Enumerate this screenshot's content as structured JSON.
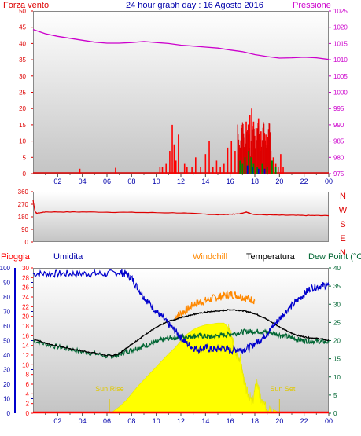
{
  "header": {
    "left_label": "Forza vento",
    "title": "24 hour graph day : 16 Agosto 2016",
    "right_label": "Pressione"
  },
  "panel3_labels": {
    "rain": "Pioggia",
    "humidity": "Umidita",
    "windchill": "Windchill",
    "temperature": "Temperatura",
    "dewpoint": "Dew Point (°C"
  },
  "colors": {
    "wind": "#dd0000",
    "wind_gust": "#ff0000",
    "wind_green": "#008800",
    "wind_blue": "#0000cc",
    "pressure": "#cc00cc",
    "direction": "#dd0000",
    "humidity": "#0000cc",
    "temperature": "#000000",
    "windchill": "#ff8800",
    "dewpoint": "#006633",
    "solar": "#ffff00",
    "rain": "#ff0000",
    "background_top": "#ffffff",
    "background_bottom": "#bfbfbf"
  },
  "chart_data": [
    {
      "type": "line",
      "name": "wind-pressure",
      "x_ticks": [
        "02",
        "04",
        "06",
        "08",
        "10",
        "12",
        "14",
        "16",
        "18",
        "20",
        "22",
        "00"
      ],
      "left_axis": {
        "ticks": [
          0,
          5,
          10,
          15,
          20,
          25,
          30,
          35,
          40,
          45,
          50
        ],
        "ylim": [
          0,
          50
        ]
      },
      "right_axis": {
        "ticks": [
          975,
          980,
          985,
          990,
          995,
          1000,
          1005,
          1010,
          1015,
          1020,
          1025
        ],
        "ylim": [
          975,
          1025
        ]
      },
      "pressure": {
        "x": [
          0,
          1,
          2,
          3,
          4,
          5,
          6,
          7,
          8,
          9,
          10,
          11,
          12,
          13,
          14,
          15,
          16,
          17,
          18,
          19,
          20,
          21,
          22,
          23,
          24
        ],
        "y": [
          1019.3,
          1018.0,
          1017.2,
          1016.6,
          1016.0,
          1015.4,
          1015.1,
          1015.1,
          1015.3,
          1015.6,
          1015.3,
          1015.0,
          1014.5,
          1014.2,
          1013.9,
          1013.6,
          1013.0,
          1012.5,
          1011.6,
          1011.0,
          1010.5,
          1010.6,
          1010.8,
          1010.6,
          1010.1
        ]
      },
      "wind_speed_spikes": [
        {
          "x": 3.8,
          "v": 1.5
        },
        {
          "x": 6.7,
          "v": 1.8
        },
        {
          "x": 10.3,
          "v": 2
        },
        {
          "x": 10.5,
          "v": 2
        },
        {
          "x": 10.8,
          "v": 3
        },
        {
          "x": 11.1,
          "v": 7
        },
        {
          "x": 11.3,
          "v": 15
        },
        {
          "x": 11.45,
          "v": 9
        },
        {
          "x": 11.6,
          "v": 4
        },
        {
          "x": 11.8,
          "v": 12
        },
        {
          "x": 12.3,
          "v": 3
        },
        {
          "x": 12.5,
          "v": 2
        },
        {
          "x": 12.9,
          "v": 2
        },
        {
          "x": 13.2,
          "v": 5
        },
        {
          "x": 13.6,
          "v": 2
        },
        {
          "x": 14.0,
          "v": 6
        },
        {
          "x": 14.3,
          "v": 10
        },
        {
          "x": 14.6,
          "v": 2
        },
        {
          "x": 14.9,
          "v": 4
        },
        {
          "x": 15.2,
          "v": 2
        },
        {
          "x": 15.5,
          "v": 3
        },
        {
          "x": 15.8,
          "v": 8
        },
        {
          "x": 16.1,
          "v": 10
        },
        {
          "x": 16.4,
          "v": 7
        },
        {
          "x": 16.7,
          "v": 6
        },
        {
          "x": 16.9,
          "v": 15
        },
        {
          "x": 17.1,
          "v": 11
        },
        {
          "x": 17.3,
          "v": 16
        },
        {
          "x": 17.5,
          "v": 12
        },
        {
          "x": 17.6,
          "v": 18
        },
        {
          "x": 17.75,
          "v": 20
        },
        {
          "x": 17.9,
          "v": 16
        },
        {
          "x": 18.1,
          "v": 14
        },
        {
          "x": 18.3,
          "v": 17
        },
        {
          "x": 18.5,
          "v": 13
        },
        {
          "x": 18.7,
          "v": 10
        },
        {
          "x": 18.9,
          "v": 12
        },
        {
          "x": 19.1,
          "v": 9
        },
        {
          "x": 19.3,
          "v": 7
        },
        {
          "x": 19.5,
          "v": 5
        },
        {
          "x": 19.7,
          "v": 3
        },
        {
          "x": 19.9,
          "v": 2
        },
        {
          "x": 20.1,
          "v": 6
        },
        {
          "x": 20.3,
          "v": 2
        }
      ],
      "wind_avg_green": [
        {
          "x": 16.8,
          "v": 4
        },
        {
          "x": 17.0,
          "v": 3
        },
        {
          "x": 17.2,
          "v": 5
        },
        {
          "x": 17.5,
          "v": 7
        },
        {
          "x": 17.7,
          "v": 5
        },
        {
          "x": 17.9,
          "v": 3
        },
        {
          "x": 18.2,
          "v": 2
        },
        {
          "x": 18.6,
          "v": 3
        },
        {
          "x": 19.0,
          "v": 2
        },
        {
          "x": 19.4,
          "v": 4
        },
        {
          "x": 19.7,
          "v": 2
        }
      ],
      "wind_avg_blue": [
        {
          "x": 17.4,
          "v": 2.5
        },
        {
          "x": 17.8,
          "v": 2
        },
        {
          "x": 18.3,
          "v": 1.5
        },
        {
          "x": 18.8,
          "v": 1.5
        }
      ]
    },
    {
      "type": "line",
      "name": "wind-direction",
      "x_ticks": [],
      "left_axis": {
        "ticks": [
          0,
          90,
          180,
          270,
          360
        ],
        "ylim": [
          0,
          360
        ]
      },
      "right_labels": [
        "N",
        "W",
        "S",
        "E",
        "N"
      ],
      "direction": {
        "x": [
          0,
          0.15,
          0.3,
          1,
          4,
          8,
          12,
          15,
          16,
          16.5,
          17,
          17.3,
          17.6,
          18,
          20,
          22,
          24
        ],
        "y": [
          300,
          220,
          205,
          215,
          215,
          212,
          208,
          195,
          198,
          200,
          207,
          215,
          205,
          196,
          192,
          190,
          188
        ]
      }
    },
    {
      "type": "line",
      "name": "humidity-temperature",
      "x_ticks": [
        "02",
        "04",
        "06",
        "08",
        "10",
        "12",
        "14",
        "16",
        "18",
        "20",
        "22",
        "00"
      ],
      "humidity_axis": {
        "ticks": [
          0,
          10,
          20,
          30,
          40,
          50,
          60,
          70,
          80,
          90,
          100
        ],
        "ylim": [
          0,
          100
        ]
      },
      "rain_axis": {
        "ticks": [
          0,
          2,
          4,
          6,
          8,
          10,
          12,
          14,
          16,
          18,
          20,
          22,
          24,
          26,
          28,
          30
        ],
        "ylim": [
          0,
          30
        ]
      },
      "temp_axis": {
        "ticks": [
          0,
          5,
          10,
          15,
          20,
          25,
          30,
          35,
          40
        ],
        "ylim": [
          0,
          40
        ]
      },
      "sun_rise_label": "Sun Rise",
      "sun_set_label": "Sun Set",
      "sun_rise_hour": 6.2,
      "sun_set_hour": 20.0,
      "humidity": {
        "x": [
          0,
          1,
          2,
          3,
          4,
          5,
          6,
          7,
          7.5,
          8,
          8.5,
          9,
          9.5,
          10,
          10.5,
          11,
          11.5,
          12,
          12.5,
          13,
          13.5,
          14,
          14.5,
          15,
          15.5,
          16,
          16.5,
          17,
          17.5,
          18,
          18.5,
          19,
          19.5,
          20,
          20.5,
          21,
          21.5,
          22,
          22.5,
          23,
          23.5,
          24
        ],
        "y": [
          96,
          96,
          96,
          96,
          96,
          96,
          96,
          97,
          96,
          93,
          86,
          80,
          75,
          70,
          66,
          61,
          57,
          52,
          48,
          45,
          44,
          45,
          44,
          44,
          45,
          43,
          44,
          44,
          45,
          48,
          51,
          55,
          60,
          65,
          70,
          74,
          78,
          82,
          86,
          87,
          88,
          88
        ]
      },
      "temperature": {
        "x": [
          0,
          1,
          2,
          3,
          4,
          5,
          6,
          6.5,
          7,
          7.5,
          8,
          8.5,
          9,
          9.5,
          10,
          10.5,
          11,
          11.5,
          12,
          12.5,
          13,
          13.5,
          14,
          14.5,
          15,
          15.5,
          16,
          16.5,
          17,
          17.5,
          18,
          18.5,
          19,
          19.5,
          20,
          20.5,
          21,
          21.5,
          22,
          22.5,
          23,
          23.5,
          24
        ],
        "y": [
          20.5,
          19.3,
          18.5,
          17.8,
          17.1,
          16.6,
          15.9,
          15.9,
          16.4,
          17.7,
          19.0,
          20.2,
          21.4,
          22.6,
          23.6,
          24.5,
          25.3,
          25.8,
          26.3,
          26.8,
          27.2,
          27.5,
          27.8,
          28.0,
          28.1,
          28.3,
          28.5,
          28.4,
          28.2,
          27.9,
          27.4,
          26.7,
          25.8,
          24.8,
          23.8,
          22.8,
          22.0,
          21.4,
          21.0,
          20.8,
          20.6,
          20.4,
          20.0
        ]
      },
      "windchill": {
        "x": [
          11.5,
          12,
          12.5,
          13,
          13.5,
          14,
          14.5,
          15,
          15.5,
          16,
          16.5,
          17,
          17.5,
          18
        ],
        "y": [
          26.5,
          27.5,
          28.5,
          30.0,
          30.5,
          31.0,
          31.5,
          32.0,
          32.3,
          32.8,
          32.5,
          32.0,
          31.5,
          31.0
        ]
      },
      "dewpoint": {
        "x": [
          0,
          1,
          2,
          3,
          4,
          5,
          6,
          6.5,
          7,
          7.5,
          8,
          8.5,
          9,
          9.5,
          10,
          10.5,
          11,
          11.5,
          12,
          12.5,
          13,
          13.5,
          14,
          14.5,
          15,
          15.5,
          16,
          16.5,
          17,
          17.5,
          18,
          18.5,
          19,
          19.5,
          20,
          20.5,
          21,
          21.5,
          22,
          22.5,
          23,
          23.5,
          24
        ],
        "y": [
          20.0,
          19.0,
          18.3,
          17.6,
          16.9,
          16.4,
          15.7,
          15.7,
          16.1,
          16.9,
          17.4,
          18.0,
          18.5,
          19.0,
          19.6,
          20.2,
          20.6,
          20.8,
          21.0,
          21.1,
          21.2,
          21.4,
          21.2,
          21.0,
          21.3,
          21.5,
          21.8,
          22.0,
          22.4,
          22.5,
          22.6,
          22.5,
          22.3,
          22.0,
          21.6,
          21.2,
          20.8,
          20.3,
          20.0,
          19.9,
          19.8,
          19.7,
          19.6
        ]
      },
      "solar_fraction": {
        "x": [
          6.3,
          6.7,
          7,
          7.5,
          8,
          8.5,
          9,
          9.5,
          10,
          10.5,
          11,
          11.5,
          12,
          12.5,
          13,
          13.5,
          14,
          14.5,
          15,
          15.5,
          15.8,
          16,
          16.2,
          16.4,
          16.6,
          16.8,
          17.0,
          17.2,
          17.4,
          17.6,
          17.8,
          18.0,
          18.2,
          18.4,
          18.6,
          18.8,
          19.0,
          19.2,
          19.5,
          19.8,
          20.0
        ],
        "y": [
          0,
          0.04,
          0.07,
          0.13,
          0.21,
          0.29,
          0.36,
          0.43,
          0.5,
          0.57,
          0.64,
          0.7,
          0.78,
          0.85,
          0.9,
          0.93,
          0.95,
          0.96,
          0.97,
          0.97,
          0.93,
          0.88,
          0.78,
          0.65,
          0.62,
          0.6,
          0.45,
          0.3,
          0.22,
          0.18,
          0.1,
          0.25,
          0.35,
          0.18,
          0.12,
          0.08,
          0.05,
          0.09,
          0.04,
          0.02,
          0
        ]
      },
      "rain": {
        "x": [
          0,
          24
        ],
        "y": [
          0,
          0
        ]
      }
    }
  ]
}
